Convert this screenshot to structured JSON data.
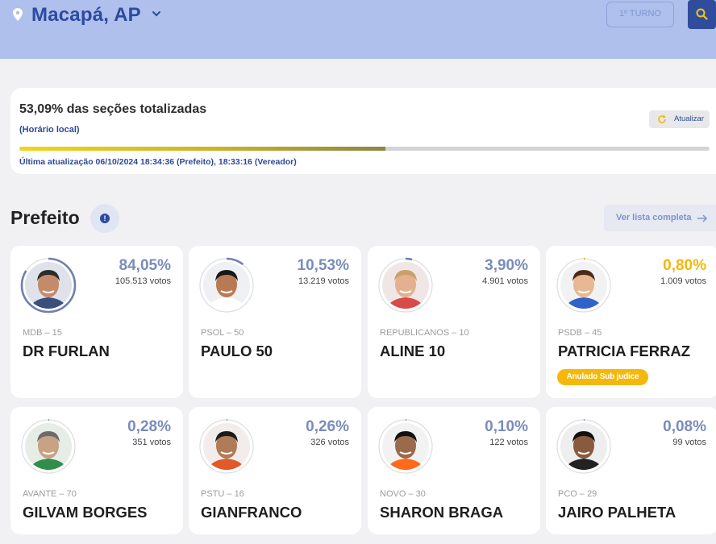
{
  "header": {
    "city": "Macapá, AP",
    "turno_label": "1º TURNO",
    "icons": {
      "location": "location-pin-icon",
      "chevron": "chevron-down-icon",
      "search": "search-icon"
    }
  },
  "status": {
    "title": "53,09% das seções totalizadas",
    "subtitle": "(Horário local)",
    "refresh_label": "Atualizar",
    "progress_percent": 53.09,
    "last_update": "Última atualização 06/10/2024 18:34:36 (Prefeito), 18:33:16 (Vereador)"
  },
  "section": {
    "title": "Prefeito",
    "info_icon": "!",
    "list_link": "Ver lista completa"
  },
  "candidates": [
    {
      "name": "DR FURLAN",
      "party": "MDB – 15",
      "pct": "84,05%",
      "votes": "105.513 votos",
      "share": 84.05,
      "badge": ""
    },
    {
      "name": "PAULO 50",
      "party": "PSOL – 50",
      "pct": "10,53%",
      "votes": "13.219 votos",
      "share": 10.53,
      "badge": ""
    },
    {
      "name": "ALINE 10",
      "party": "REPUBLICANOS – 10",
      "pct": "3,90%",
      "votes": "4.901 votos",
      "share": 3.9,
      "badge": ""
    },
    {
      "name": "PATRICIA FERRAZ",
      "party": "PSDB – 45",
      "pct": "0,80%",
      "votes": "1.009 votos",
      "share": 0.8,
      "badge": "Anulado Sub judice"
    },
    {
      "name": "GILVAM BORGES",
      "party": "AVANTE – 70",
      "pct": "0,28%",
      "votes": "351 votos",
      "share": 0.28,
      "badge": ""
    },
    {
      "name": "GIANFRANCO",
      "party": "PSTU – 16",
      "pct": "0,26%",
      "votes": "326 votos",
      "share": 0.26,
      "badge": ""
    },
    {
      "name": "SHARON BRAGA",
      "party": "NOVO – 30",
      "pct": "0,10%",
      "votes": "122 votos",
      "share": 0.1,
      "badge": ""
    },
    {
      "name": "JAIRO PALHETA",
      "party": "PCO – 29",
      "pct": "0,08%",
      "votes": "99 votos",
      "share": 0.08,
      "badge": ""
    }
  ],
  "colors": {
    "brand": "#2c4aa0",
    "band": "#aec0eb",
    "pct_default": "#7a8cb9",
    "pct_annulled": "#f4b80b",
    "ring_default": "#6f7fb0",
    "ring_annulled": "#f4b80b"
  }
}
